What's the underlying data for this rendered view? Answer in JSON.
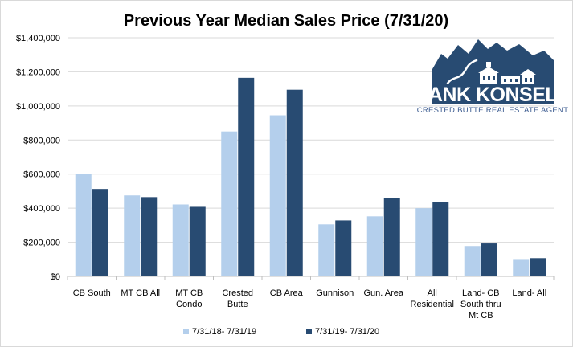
{
  "chart_data": {
    "type": "bar",
    "title": "Previous Year Median Sales Price (7/31/20)",
    "xlabel": "",
    "ylabel": "",
    "ylim": [
      0,
      1400000
    ],
    "yticks": [
      0,
      200000,
      400000,
      600000,
      800000,
      1000000,
      1200000,
      1400000
    ],
    "ytick_labels": [
      "$0",
      "$200,000",
      "$400,000",
      "$600,000",
      "$800,000",
      "$1,000,000",
      "$1,200,000",
      "$1,400,000"
    ],
    "grid": true,
    "legend_position": "bottom",
    "categories": [
      [
        "CB South"
      ],
      [
        "MT CB All"
      ],
      [
        "MT CB",
        "Condo"
      ],
      [
        "Crested",
        "Butte"
      ],
      [
        "CB Area"
      ],
      [
        "Gunnison"
      ],
      [
        "Gun. Area"
      ],
      [
        "All",
        "Residential"
      ],
      [
        "Land- CB",
        "South thru",
        "Mt CB"
      ],
      [
        "Land- All"
      ]
    ],
    "series": [
      {
        "name": "7/31/18- 7/31/19",
        "color": "#b4cfec",
        "values": [
          600000,
          475000,
          422000,
          850000,
          945000,
          305000,
          352000,
          400000,
          178000,
          97000
        ]
      },
      {
        "name": "7/31/19- 7/31/20",
        "color": "#284b72",
        "values": [
          513000,
          465000,
          408000,
          1165000,
          1095000,
          328000,
          458000,
          437000,
          193000,
          107000
        ]
      }
    ]
  },
  "logo": {
    "name": "FRANK KONSELLA",
    "tagline": "CRESTED BUTTE REAL ESTATE AGENT",
    "color": "#284b72"
  }
}
